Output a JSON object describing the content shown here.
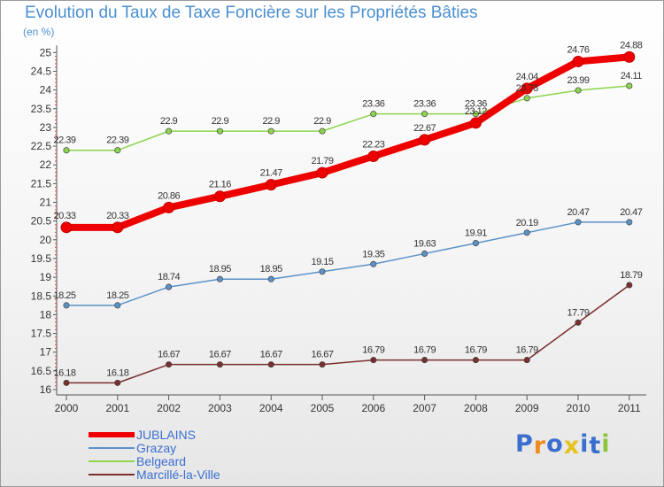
{
  "chart_data": {
    "type": "line",
    "title": "Evolution du Taux de Taxe Foncière sur les Propriétés Bâties",
    "subtitle": "(en %)",
    "xlabel": "",
    "ylabel": "",
    "ylim": [
      16,
      25
    ],
    "grid": false,
    "legend_position": "bottom-left",
    "categories": [
      "2000",
      "2001",
      "2002",
      "2003",
      "2004",
      "2005",
      "2006",
      "2007",
      "2008",
      "2009",
      "2010",
      "2011"
    ],
    "yticks": [
      "16",
      "16.5",
      "17",
      "17.5",
      "18",
      "18.5",
      "19",
      "19.5",
      "20",
      "20.5",
      "21",
      "21.5",
      "22",
      "22.5",
      "23",
      "23.5",
      "24",
      "24.5",
      "25"
    ],
    "series": [
      {
        "name": "JUBLAINS",
        "color": "#ee0000",
        "values": [
          20.33,
          20.33,
          20.86,
          21.16,
          21.47,
          21.79,
          22.23,
          22.67,
          23.12,
          24.04,
          24.76,
          24.88
        ],
        "labels": [
          "20.33",
          "20.33",
          "20.86",
          "21.16",
          "21.47",
          "21.79",
          "22.23",
          "22.67",
          "23.12",
          "24.04",
          "24.76",
          "24.88"
        ]
      },
      {
        "name": "Grazay",
        "color": "#5b93c7",
        "values": [
          18.25,
          18.25,
          18.74,
          18.95,
          18.95,
          19.15,
          19.35,
          19.63,
          19.91,
          20.19,
          20.47,
          20.47
        ],
        "labels": [
          "18.25",
          "18.25",
          "18.74",
          "18.95",
          "18.95",
          "19.15",
          "19.35",
          "19.63",
          "19.91",
          "20.19",
          "20.47",
          "20.47"
        ]
      },
      {
        "name": "Belgeard",
        "color": "#8dd44f",
        "values": [
          22.39,
          22.39,
          22.9,
          22.9,
          22.9,
          22.9,
          23.36,
          23.36,
          23.36,
          23.78,
          23.99,
          24.11
        ],
        "labels": [
          "22.39",
          "22.39",
          "22.9",
          "22.9",
          "22.9",
          "22.9",
          "23.36",
          "23.36",
          "23.36",
          "23.78",
          "23.99",
          "24.11"
        ]
      },
      {
        "name": "Marcillé-la-Ville",
        "color": "#7a2e2e",
        "values": [
          16.18,
          16.18,
          16.67,
          16.67,
          16.67,
          16.67,
          16.79,
          16.79,
          16.79,
          16.79,
          17.79,
          18.79
        ],
        "labels": [
          "16.18",
          "16.18",
          "16.67",
          "16.67",
          "16.67",
          "16.67",
          "16.79",
          "16.79",
          "16.79",
          "16.79",
          "17.79",
          "18.79"
        ]
      }
    ]
  },
  "brand": {
    "logo_letters": [
      "P",
      "r",
      "o",
      "x",
      "i",
      "t",
      "i"
    ],
    "logo_colors": [
      "#3a6fd0",
      "#f08a1c",
      "#3a6fd0",
      "#e8c21c",
      "#3a6fd0",
      "#3a6fd0",
      "#8ac63c"
    ]
  }
}
